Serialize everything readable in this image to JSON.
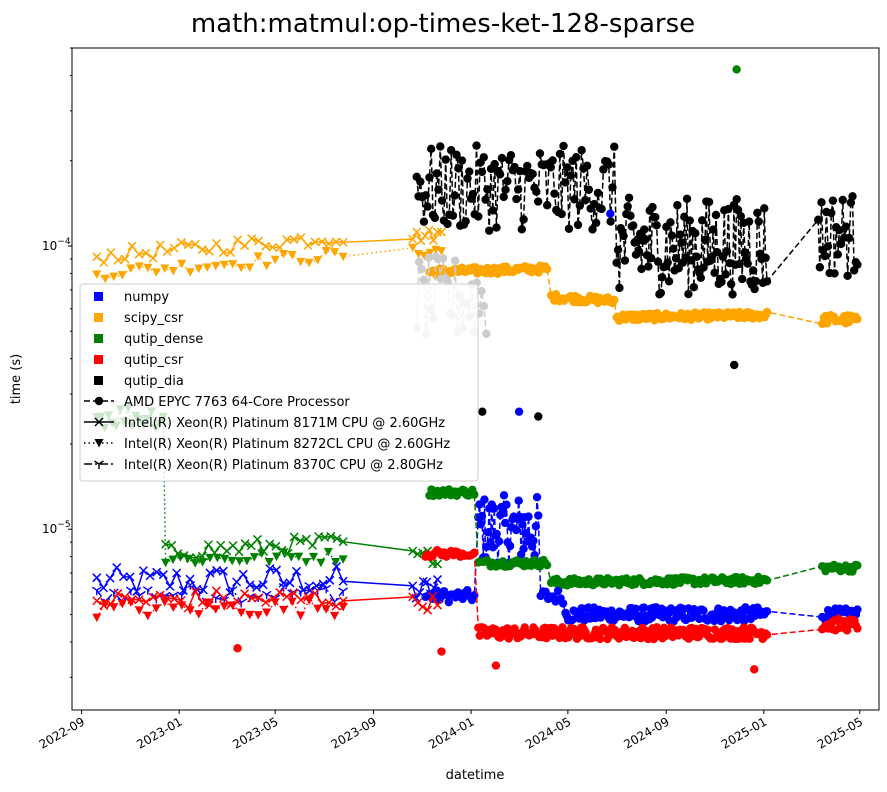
{
  "chart_data": {
    "type": "line",
    "title": "math:matmul:op-times-ket-128-sparse",
    "xlabel": "datetime",
    "ylabel": "time (s)",
    "yscale": "log",
    "xlim": [
      "2022-08-20",
      "2025-05-25"
    ],
    "ylim": [
      2.3e-06,
      0.0005
    ],
    "x_ticks": [
      "2022-09",
      "2023-01",
      "2023-05",
      "2023-09",
      "2024-01",
      "2024-05",
      "2024-09",
      "2025-01",
      "2025-05"
    ],
    "y_ticks": [
      {
        "value": 1e-05,
        "label": "10^-5"
      },
      {
        "value": 0.0001,
        "label": "10^-4"
      }
    ],
    "y_tick_labels": {
      "base": "10",
      "exp_small": "−5",
      "exp_large": "−4"
    },
    "legend": {
      "placement": "center-left",
      "colors": [
        {
          "name": "numpy",
          "color": "#0000ff"
        },
        {
          "name": "scipy_csr",
          "color": "#ffa500"
        },
        {
          "name": "qutip_dense",
          "color": "#008000"
        },
        {
          "name": "qutip_csr",
          "color": "#ff0000"
        },
        {
          "name": "qutip_dia",
          "color": "#000000"
        }
      ],
      "cpus": [
        {
          "name": "AMD EPYC 7763 64-Core Processor",
          "linestyle": "dashed",
          "marker": "circle"
        },
        {
          "name": "Intel(R) Xeon(R) Platinum 8171M CPU @ 2.60GHz",
          "linestyle": "solid",
          "marker": "x"
        },
        {
          "name": "Intel(R) Xeon(R) Platinum 8272CL CPU @ 2.60GHz",
          "linestyle": "dotted",
          "marker": "triangle-down"
        },
        {
          "name": "Intel(R) Xeon(R) Platinum 8370C CPU @ 2.80GHz",
          "linestyle": "dashdot",
          "marker": "tri-down"
        }
      ]
    },
    "series": [
      {
        "color": "#0000ff",
        "cpu": "Intel(R) Xeon(R) Platinum 8171M CPU @ 2.60GHz",
        "segments": [
          {
            "x0": "2022-09-20",
            "x1": "2023-07-25",
            "y0": 6.5e-06,
            "y1": 6.6e-06,
            "n": 38,
            "noise": 0.12
          },
          {
            "x0": "2023-10-20",
            "x1": "2023-11-20",
            "y0": 6e-06,
            "y1": 6.2e-06,
            "n": 8,
            "noise": 0.1
          }
        ]
      },
      {
        "color": "#0000ff",
        "cpu": "Intel(R) Xeon(R) Platinum 8370C CPU @ 2.80GHz",
        "segments": [
          {
            "x0": "2022-09-20",
            "x1": "2023-07-25",
            "y0": 5.9e-06,
            "y1": 6e-06,
            "n": 30,
            "noise": 0.08
          }
        ]
      },
      {
        "color": "#0000ff",
        "cpu": "AMD EPYC 7763 64-Core Processor",
        "segments": [
          {
            "x0": "2023-11-05",
            "x1": "2024-01-05",
            "y0": 5.8e-06,
            "y1": 5.8e-06,
            "n": 22,
            "noise": 0.05
          },
          {
            "x0": "2024-01-10",
            "x1": "2024-03-25",
            "y0": 1e-05,
            "y1": 1e-05,
            "n": 50,
            "noise": 0.28
          },
          {
            "x0": "2024-03-28",
            "x1": "2024-04-25",
            "y0": 5.8e-06,
            "y1": 5.8e-06,
            "n": 10,
            "noise": 0.06
          },
          {
            "x0": "2024-04-28",
            "x1": "2025-01-05",
            "y0": 5e-06,
            "y1": 5e-06,
            "n": 150,
            "noise": 0.06
          },
          {
            "x0": "2025-03-15",
            "x1": "2025-04-28",
            "y0": 5e-06,
            "y1": 5e-06,
            "n": 25,
            "noise": 0.05
          }
        ]
      },
      {
        "color": "#ffa500",
        "cpu": "Intel(R) Xeon(R) Platinum 8171M CPU @ 2.60GHz",
        "segments": [
          {
            "x0": "2022-09-20",
            "x1": "2023-07-25",
            "y0": 9.2e-05,
            "y1": 0.000108,
            "n": 36,
            "noise": 0.06
          },
          {
            "x0": "2023-10-20",
            "x1": "2023-11-25",
            "y0": 0.000108,
            "y1": 0.00011,
            "n": 8,
            "noise": 0.05
          }
        ]
      },
      {
        "color": "#ffa500",
        "cpu": "Intel(R) Xeon(R) Platinum 8272CL CPU @ 2.60GHz",
        "segments": [
          {
            "x0": "2022-09-20",
            "x1": "2023-07-25",
            "y0": 8e-05,
            "y1": 9.3e-05,
            "n": 30,
            "noise": 0.05
          },
          {
            "x0": "2023-10-20",
            "x1": "2023-11-25",
            "y0": 9.5e-05,
            "y1": 9.6e-05,
            "n": 6,
            "noise": 0.04
          }
        ]
      },
      {
        "color": "#ffa500",
        "cpu": "AMD EPYC 7763 64-Core Processor",
        "segments": [
          {
            "x0": "2023-11-10",
            "x1": "2024-04-05",
            "y0": 8.1e-05,
            "y1": 8.3e-05,
            "n": 70,
            "noise": 0.03
          },
          {
            "x0": "2024-04-10",
            "x1": "2024-06-28",
            "y0": 6.6e-05,
            "y1": 6.4e-05,
            "n": 40,
            "noise": 0.03
          },
          {
            "x0": "2024-07-01",
            "x1": "2025-01-05",
            "y0": 5.6e-05,
            "y1": 5.7e-05,
            "n": 120,
            "noise": 0.03
          },
          {
            "x0": "2025-03-15",
            "x1": "2025-04-28",
            "y0": 5.5e-05,
            "y1": 5.5e-05,
            "n": 22,
            "noise": 0.04
          }
        ]
      },
      {
        "color": "#008000",
        "cpu": "Intel(R) Xeon(R) Platinum 8171M CPU @ 2.60GHz",
        "segments": [
          {
            "x0": "2022-12-15",
            "x1": "2023-07-25",
            "y0": 8.3e-06,
            "y1": 9e-06,
            "n": 30,
            "noise": 0.07
          },
          {
            "x0": "2023-10-20",
            "x1": "2023-11-20",
            "y0": 8e-06,
            "y1": 8e-06,
            "n": 6,
            "noise": 0.06
          }
        ]
      },
      {
        "color": "#008000",
        "cpu": "Intel(R) Xeon(R) Platinum 8272CL CPU @ 2.60GHz",
        "segments": [
          {
            "x0": "2022-09-20",
            "x1": "2022-12-12",
            "y0": 2.5e-05,
            "y1": 2.5e-05,
            "n": 18,
            "noise": 0.1
          },
          {
            "x0": "2022-12-15",
            "x1": "2023-07-25",
            "y0": 7.8e-06,
            "y1": 8e-06,
            "n": 25,
            "noise": 0.05
          }
        ]
      },
      {
        "color": "#008000",
        "cpu": "AMD EPYC 7763 64-Core Processor",
        "segments": [
          {
            "x0": "2023-11-10",
            "x1": "2024-01-05",
            "y0": 1.35e-05,
            "y1": 1.35e-05,
            "n": 24,
            "noise": 0.03
          },
          {
            "x0": "2024-01-10",
            "x1": "2024-04-05",
            "y0": 7.6e-06,
            "y1": 7.6e-06,
            "n": 40,
            "noise": 0.03
          },
          {
            "x0": "2024-04-10",
            "x1": "2025-01-05",
            "y0": 6.5e-06,
            "y1": 6.6e-06,
            "n": 150,
            "noise": 0.03
          },
          {
            "x0": "2025-03-15",
            "x1": "2025-04-28",
            "y0": 7.3e-06,
            "y1": 7.3e-06,
            "n": 22,
            "noise": 0.03
          }
        ]
      },
      {
        "color": "#ff0000",
        "cpu": "Intel(R) Xeon(R) Platinum 8171M CPU @ 2.60GHz",
        "segments": [
          {
            "x0": "2022-09-20",
            "x1": "2023-07-25",
            "y0": 5.6e-06,
            "y1": 5.7e-06,
            "n": 36,
            "noise": 0.08
          },
          {
            "x0": "2023-10-20",
            "x1": "2023-11-20",
            "y0": 5.5e-06,
            "y1": 5.5e-06,
            "n": 6,
            "noise": 0.06
          }
        ]
      },
      {
        "color": "#ff0000",
        "cpu": "Intel(R) Xeon(R) Platinum 8272CL CPU @ 2.60GHz",
        "segments": [
          {
            "x0": "2022-09-20",
            "x1": "2023-07-25",
            "y0": 5.2e-06,
            "y1": 5.3e-06,
            "n": 30,
            "noise": 0.07
          }
        ]
      },
      {
        "color": "#ff0000",
        "cpu": "AMD EPYC 7763 64-Core Processor",
        "segments": [
          {
            "x0": "2023-11-05",
            "x1": "2024-01-05",
            "y0": 8.2e-06,
            "y1": 8.2e-06,
            "n": 22,
            "noise": 0.03
          },
          {
            "x0": "2024-01-10",
            "x1": "2025-01-05",
            "y0": 4.3e-06,
            "y1": 4.3e-06,
            "n": 200,
            "noise": 0.05
          },
          {
            "x0": "2025-03-15",
            "x1": "2025-04-28",
            "y0": 4.6e-06,
            "y1": 4.6e-06,
            "n": 25,
            "noise": 0.05
          }
        ]
      },
      {
        "color": "#cccccc",
        "cpu": "AMD EPYC 7763 64-Core Processor",
        "segments": [
          {
            "x0": "2023-10-25",
            "x1": "2024-01-20",
            "y0": 6.5e-05,
            "y1": 6.5e-05,
            "n": 30,
            "noise": 0.35
          }
        ]
      },
      {
        "color": "#000000",
        "cpu": "AMD EPYC 7763 64-Core Processor",
        "segments": [
          {
            "x0": "2023-10-25",
            "x1": "2024-06-28",
            "y0": 0.00016,
            "y1": 0.00016,
            "n": 110,
            "noise": 0.35
          },
          {
            "x0": "2024-07-01",
            "x1": "2025-01-05",
            "y0": 0.0001,
            "y1": 0.0001,
            "n": 110,
            "noise": 0.4
          },
          {
            "x0": "2025-03-10",
            "x1": "2025-04-28",
            "y0": 0.00011,
            "y1": 0.00011,
            "n": 25,
            "noise": 0.35
          }
        ]
      }
    ],
    "outliers": [
      {
        "color": "#008000",
        "x": "2024-11-28",
        "y": 0.00042
      },
      {
        "color": "#0000ff",
        "x": "2024-06-23",
        "y": 0.00013
      },
      {
        "color": "#000000",
        "x": "2024-01-15",
        "y": 2.6e-05
      },
      {
        "color": "#000000",
        "x": "2024-03-25",
        "y": 2.5e-05
      },
      {
        "color": "#000000",
        "x": "2024-11-25",
        "y": 3.8e-05
      },
      {
        "color": "#ff0000",
        "x": "2024-12-20",
        "y": 3.2e-06
      },
      {
        "color": "#ff0000",
        "x": "2023-11-25",
        "y": 3.7e-06
      },
      {
        "color": "#ff0000",
        "x": "2023-03-15",
        "y": 3.8e-06
      },
      {
        "color": "#0000ff",
        "x": "2024-03-01",
        "y": 2.6e-05
      },
      {
        "color": "#ff0000",
        "x": "2024-02-01",
        "y": 3.3e-06
      }
    ]
  }
}
